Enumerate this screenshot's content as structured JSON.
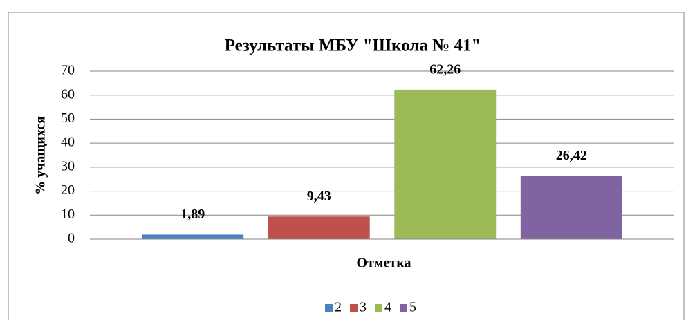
{
  "chart_data": {
    "type": "bar",
    "title": "Результаты МБУ \"Школа № 41\"",
    "x_label": "Отметка",
    "y_label": "% учащихся",
    "categories": [
      null
    ],
    "series": [
      {
        "name": "2",
        "color": "#4f81bd",
        "values": [
          1.89
        ],
        "value_labels": [
          "1,89"
        ]
      },
      {
        "name": "3",
        "color": "#c0504d",
        "values": [
          9.43
        ],
        "value_labels": [
          "9,43"
        ]
      },
      {
        "name": "4",
        "color": "#9bbb59",
        "values": [
          62.26
        ],
        "value_labels": [
          "62,26"
        ]
      },
      {
        "name": "5",
        "color": "#8064a2",
        "values": [
          26.42
        ],
        "value_labels": [
          "26,42"
        ]
      }
    ],
    "ylim": [
      0,
      70
    ],
    "yticks": [
      0,
      10,
      20,
      30,
      40,
      50,
      60,
      70
    ],
    "grid": true,
    "legend": "bottom"
  }
}
